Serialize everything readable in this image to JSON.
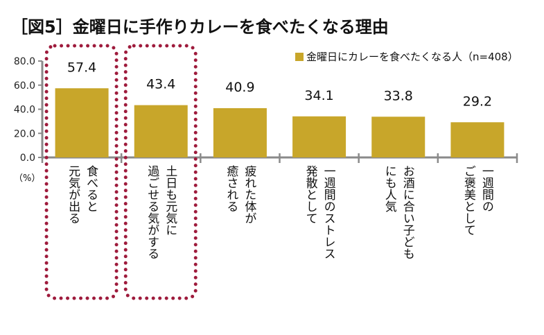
{
  "chart_data": {
    "type": "bar",
    "title": "［図5］金曜日に手作りカレーを食べたくなる理由",
    "unit_label": "（%）",
    "categories": [
      [
        "食べると",
        "元気が出る"
      ],
      [
        "土日も元気に",
        "過ごせる気がする"
      ],
      [
        "疲れた体が",
        "癒される"
      ],
      [
        "一週間のストレス",
        "発散として"
      ],
      [
        "お酒に合い子ども",
        "にも人気"
      ],
      [
        "一週間の",
        "ご褒美として"
      ]
    ],
    "series": [
      {
        "name": "金曜日にカレーを食べたくなる人（n=408）",
        "values": [
          57.4,
          43.4,
          40.9,
          34.1,
          33.8,
          29.2
        ]
      }
    ],
    "value_labels": [
      "57.4",
      "43.4",
      "40.9",
      "34.1",
      "33.8",
      "29.2"
    ],
    "ylim": [
      0,
      80
    ],
    "yticks": [
      "0.0",
      "20.0",
      "40.0",
      "60.0",
      "80.0"
    ],
    "highlighted_categories": [
      0,
      1
    ],
    "legend_position": "top-right",
    "colors": {
      "bar": "#c8a62a",
      "axis": "#8a8a8a",
      "highlight": "#9e1b3c"
    }
  }
}
